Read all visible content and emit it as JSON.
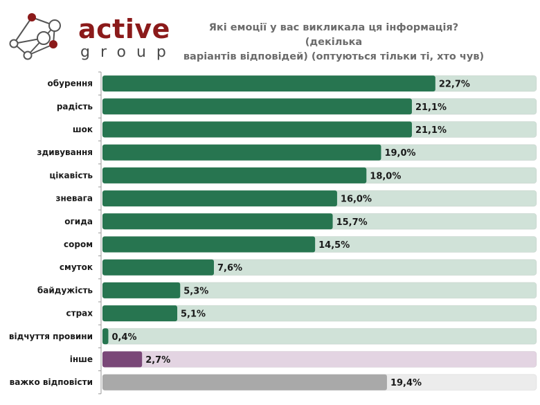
{
  "logo": {
    "brand": "active",
    "sub": "group",
    "icon": "network-nodes-icon",
    "colors": {
      "accent": "#8b1a1a",
      "text": "#4a4a4a"
    }
  },
  "chart_data": {
    "type": "bar",
    "orientation": "horizontal",
    "title": "Які емоції у вас викликала ця інформація? (декілька варіантів відповідей) (оптуються тільки ті, хто чув)",
    "title_lines": [
      "Які емоції у вас викликала ця інформація? (декілька",
      "варіантів відповідей) (оптуються тільки ті, хто чув)"
    ],
    "xlabel": "",
    "ylabel": "",
    "xlim": [
      0,
      29.6
    ],
    "grid": false,
    "legend": "none",
    "categories": [
      "обурення",
      "радість",
      "шок",
      "здивування",
      "цікавість",
      "зневага",
      "огида",
      "сором",
      "смуток",
      "байдужість",
      "страх",
      "відчуття провини",
      "інше",
      "важко відповісти"
    ],
    "values": [
      22.7,
      21.1,
      21.1,
      19.0,
      18.0,
      16.0,
      15.7,
      14.5,
      7.6,
      5.3,
      5.1,
      0.4,
      2.7,
      19.4
    ],
    "value_labels": [
      "22,7%",
      "21,1%",
      "21,1%",
      "19,0%",
      "18,0%",
      "16,0%",
      "15,7%",
      "14,5%",
      "7,6%",
      "5,3%",
      "5,1%",
      "0,4%",
      "2,7%",
      "19,4%"
    ],
    "bar_groups": [
      "emotion",
      "emotion",
      "emotion",
      "emotion",
      "emotion",
      "emotion",
      "emotion",
      "emotion",
      "emotion",
      "emotion",
      "emotion",
      "emotion",
      "other",
      "hard"
    ],
    "colors": {
      "emotion": {
        "bar": "#277550",
        "track": "#d0e2d8"
      },
      "other": {
        "bar": "#7a4878",
        "track": "#e3d4e2"
      },
      "hard": {
        "bar": "#a9a9a9",
        "track": "#ececec"
      }
    }
  }
}
